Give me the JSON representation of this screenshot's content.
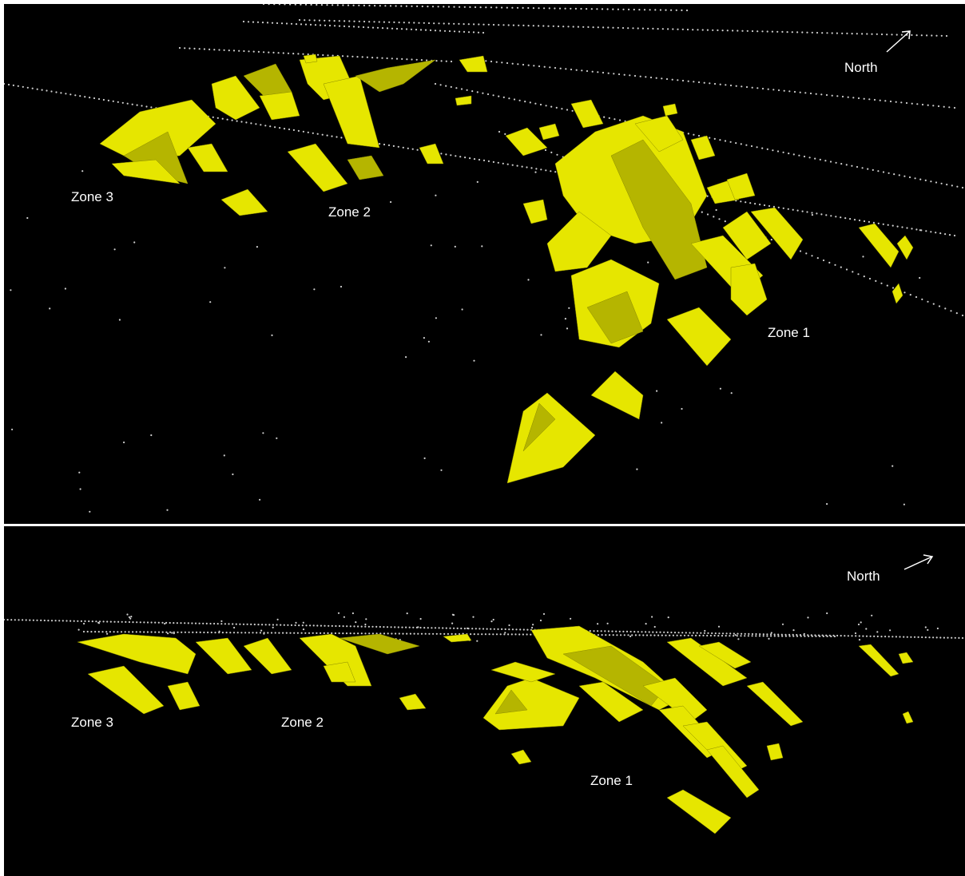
{
  "colors": {
    "background": "#000000",
    "orebody": "#e6e600",
    "orebody_shade": "#b5b500",
    "points": "#cfcfcf",
    "labels": "#ffffff"
  },
  "top_view": {
    "north_label": "North",
    "north_icon": "arrow-up-right-icon",
    "zone1_label": "Zone 1",
    "zone2_label": "Zone 2",
    "zone3_label": "Zone 3"
  },
  "bottom_view": {
    "north_label": "North",
    "north_icon": "arrow-up-right-icon",
    "zone1_label": "Zone 1",
    "zone2_label": "Zone 2",
    "zone3_label": "Zone 3"
  }
}
